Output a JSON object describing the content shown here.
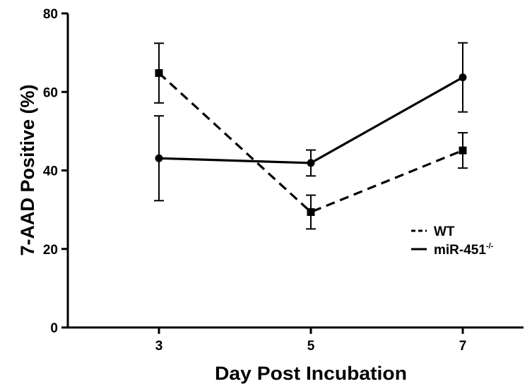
{
  "chart_data": {
    "type": "line",
    "xlabel": "Day Post Incubation",
    "ylabel": "7-AAD Positive (%)",
    "x": [
      3,
      5,
      7
    ],
    "xlim": [
      1.8,
      7.8
    ],
    "ylim": [
      0,
      80
    ],
    "yticks": [
      0,
      20,
      40,
      60,
      80
    ],
    "xticks": [
      3,
      5,
      7
    ],
    "legend_position": "center-right",
    "series": [
      {
        "name": "WT",
        "name_sup": "",
        "style": "dashed",
        "marker": "square",
        "color": "#000000",
        "values": [
          64.8,
          29.4,
          45.1
        ],
        "error": [
          7.6,
          4.3,
          4.5
        ]
      },
      {
        "name": "miR-451",
        "name_sup": "-/-",
        "style": "solid",
        "marker": "circle",
        "color": "#000000",
        "values": [
          43.1,
          41.9,
          63.7
        ],
        "error": [
          10.8,
          3.3,
          8.8
        ]
      }
    ]
  }
}
